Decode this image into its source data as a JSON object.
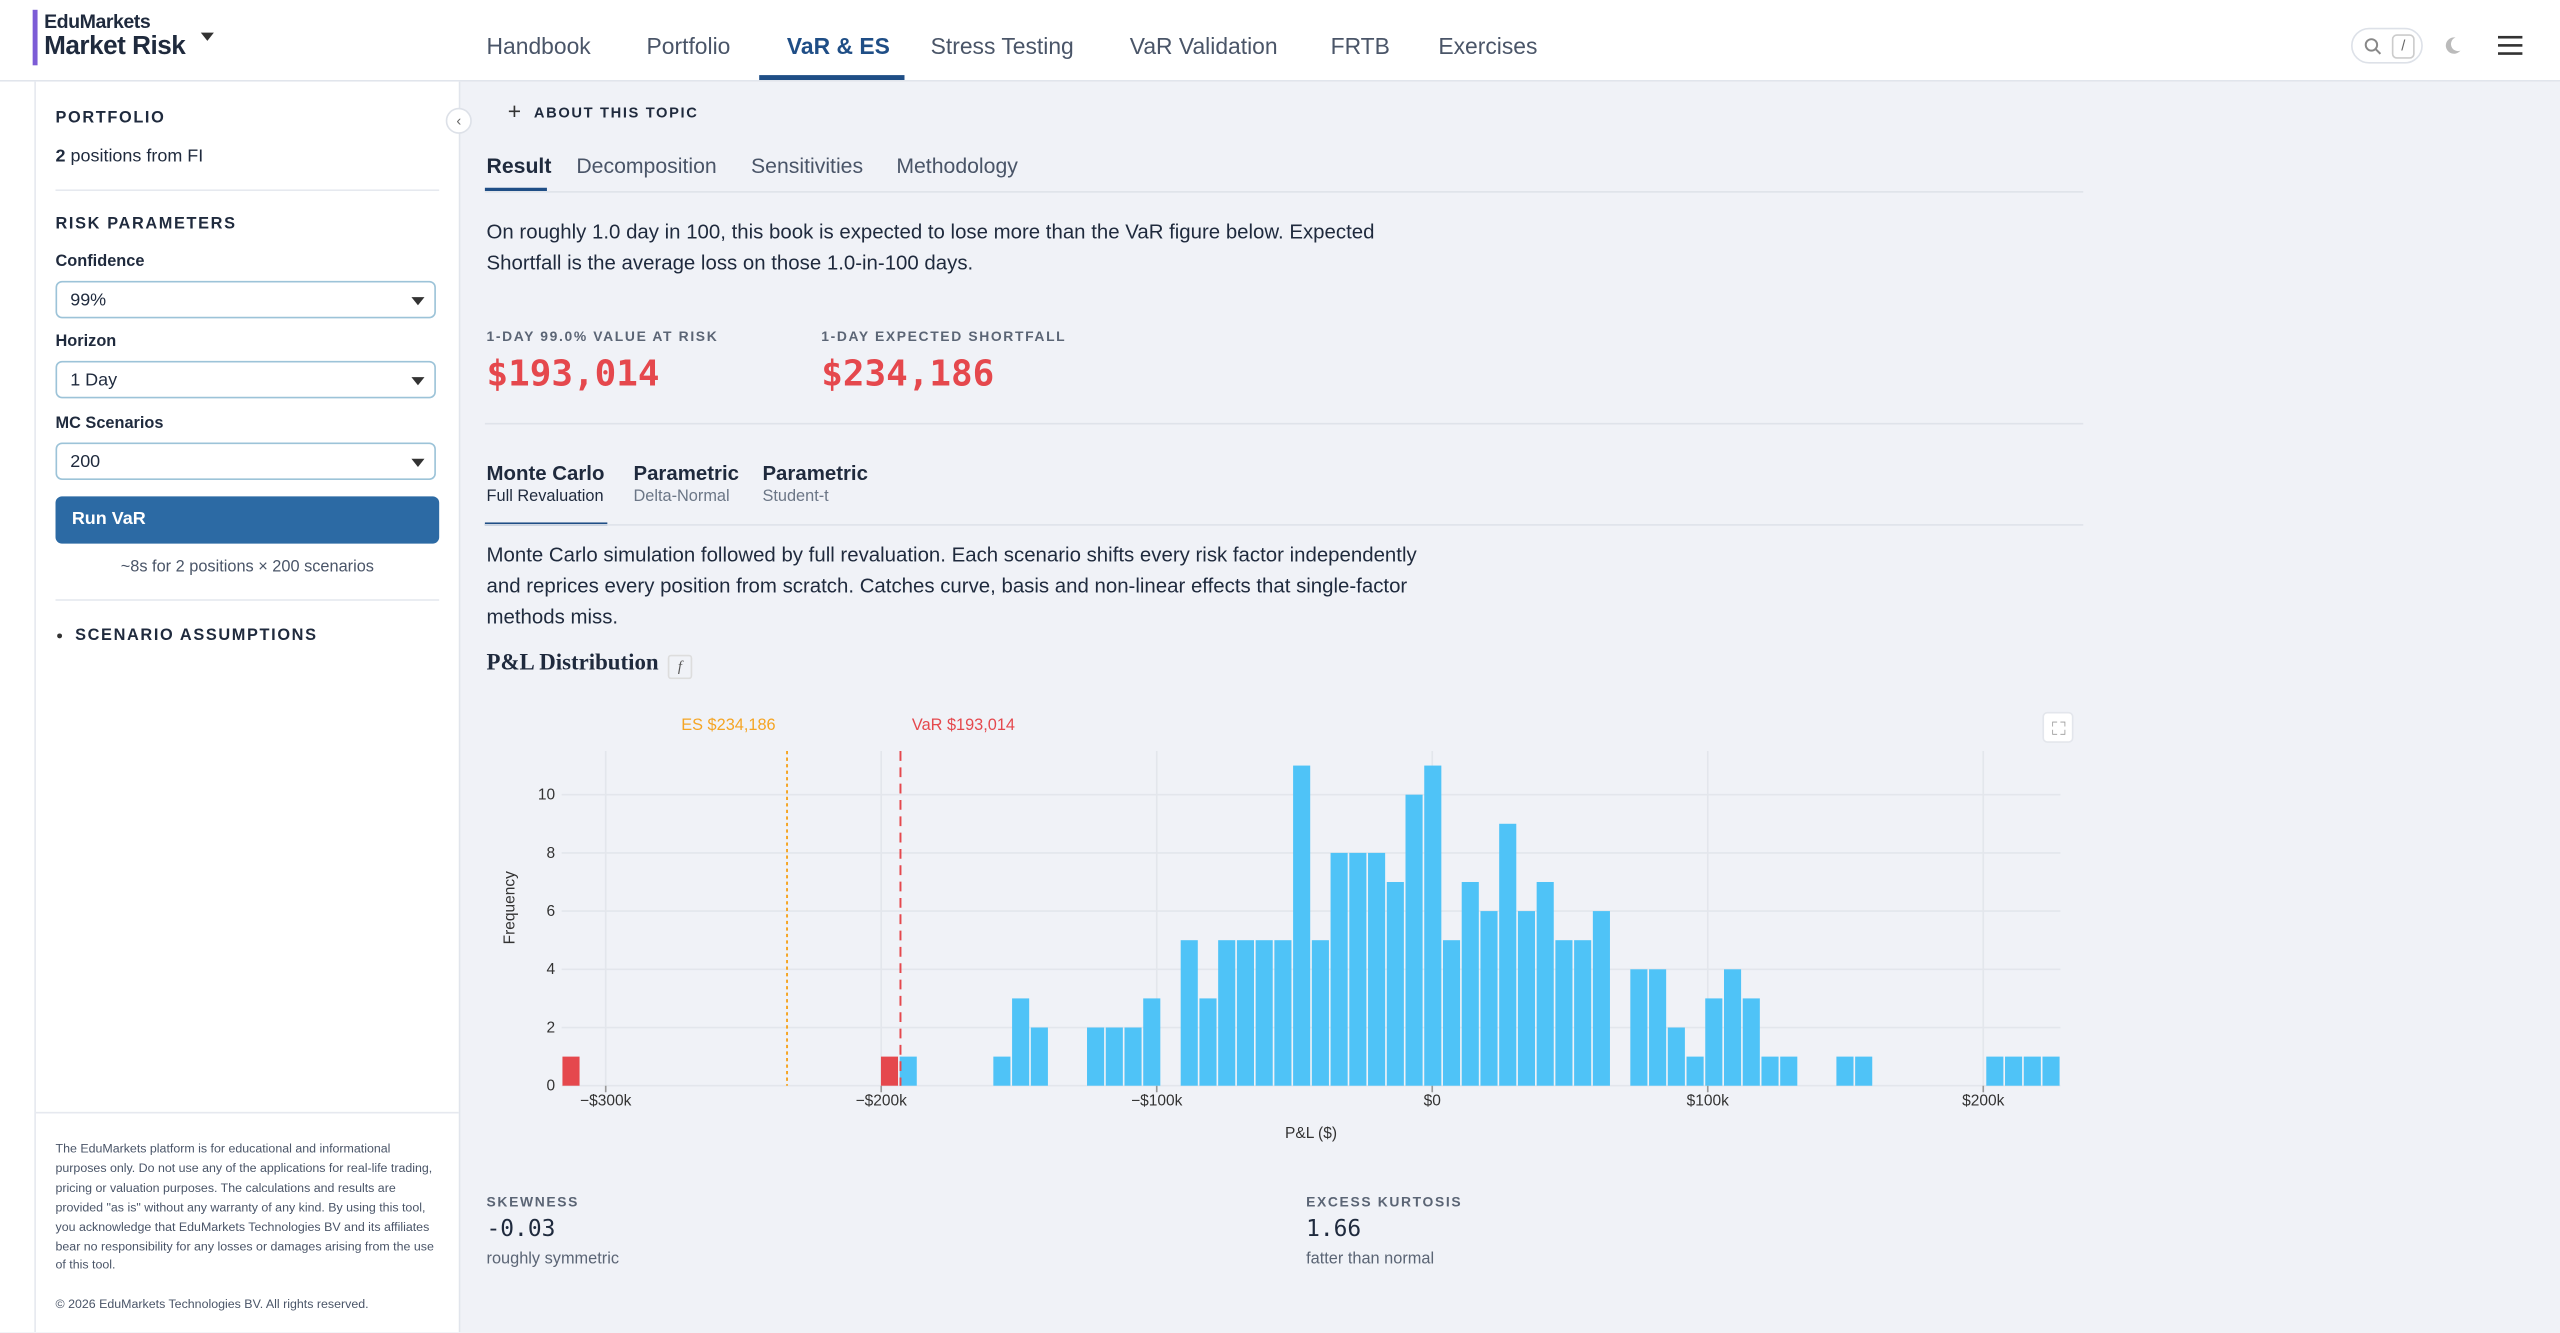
{
  "header": {
    "brand_top": "EduMarkets",
    "brand": "Market Risk",
    "nav": [
      "Handbook",
      "Portfolio",
      "VaR & ES",
      "Stress Testing",
      "VaR Validation",
      "FRTB",
      "Exercises"
    ],
    "search_key": "/"
  },
  "sidebar": {
    "portfolio_title": "PORTFOLIO",
    "position_count": "2",
    "position_text": "positions from FI",
    "risk_title": "RISK PARAMETERS",
    "fields": [
      {
        "label": "Confidence",
        "value": "99%"
      },
      {
        "label": "Horizon",
        "value": "1 Day"
      },
      {
        "label": "MC Scenarios",
        "value": "200"
      }
    ],
    "run_button": "Run VaR",
    "run_note": "~8s for 2 positions × 200 scenarios",
    "assumptions": "SCENARIO ASSUMPTIONS",
    "disclaimer": "The EduMarkets platform is for educational and informational purposes only. Do not use any of the applications for real-life trading, pricing or valuation purposes. The calculations and results are provided \"as is\" without any warranty of any kind. By using this tool, you acknowledge that EduMarkets Technologies BV and its affiliates bear no responsibility for any losses or damages arising from the use of this tool.",
    "copyright": "© 2026 EduMarkets Technologies BV. All rights reserved."
  },
  "content": {
    "about": "ABOUT THIS TOPIC",
    "tabs": [
      "Result",
      "Decomposition",
      "Sensitivities",
      "Methodology"
    ],
    "intro": "On roughly 1.0 day in 100, this book is expected to lose more than the VaR figure below. Expected Shortfall is the average loss on those 1.0-in-100 days.",
    "metrics": [
      {
        "label": "1-DAY 99.0% VALUE AT RISK",
        "value": "$193,014"
      },
      {
        "label": "1-DAY EXPECTED SHORTFALL",
        "value": "$234,186"
      }
    ],
    "methods": [
      {
        "name": "Monte Carlo",
        "sub": "Full Revaluation"
      },
      {
        "name": "Parametric",
        "sub": "Delta-Normal"
      },
      {
        "name": "Parametric",
        "sub": "Student-t"
      }
    ],
    "method_text": "Monte Carlo simulation followed by full revaluation. Each scenario shifts every risk factor independently and reprices every position from scratch. Catches curve, basis and non-linear effects that single-factor methods miss.",
    "chart_heading": "P&L Distribution",
    "chart_heading_icon": "f",
    "stats": [
      {
        "label": "SKEWNESS",
        "value": "-0.03",
        "note": "roughly symmetric"
      },
      {
        "label": "EXCESS KURTOSIS",
        "value": "1.66",
        "note": "fatter than normal"
      }
    ]
  },
  "chart_data": {
    "type": "histogram",
    "x_label": "P&L ($)",
    "y_label": "Frequency",
    "color": "#4fc3f7",
    "bins": [
      -316000,
      -309200,
      -302400,
      -295600,
      -288800,
      -282000,
      -275200,
      -268400,
      -261600,
      -254800,
      -248000,
      -241200,
      -234400,
      -227600,
      -220800,
      -214000,
      -207200,
      -200400,
      -193600,
      -186800,
      -180000,
      -173200,
      -166400,
      -159600,
      -152800,
      -146000,
      -139200,
      -132400,
      -125600,
      -118800,
      -112000,
      -105200,
      -98400,
      -91600,
      -84800,
      -78000,
      -71200,
      -64400,
      -57600,
      -50800,
      -44000,
      -37200,
      -30400,
      -23600,
      -16800,
      -10000,
      -3200,
      3600,
      10400,
      17200,
      24000,
      30800,
      37600,
      44400,
      51200,
      58000,
      64800,
      71600,
      78400,
      85200,
      92000,
      98800,
      105600,
      112400,
      119200,
      126000,
      132800,
      139600,
      146400,
      153200,
      160000,
      166800,
      173600,
      180400,
      187200,
      194000,
      200800,
      207600,
      214400,
      221200,
      228000
    ],
    "counts": [
      1,
      0,
      0,
      0,
      0,
      0,
      0,
      0,
      0,
      0,
      0,
      0,
      0,
      0,
      0,
      0,
      0,
      1,
      1,
      0,
      0,
      0,
      0,
      1,
      3,
      2,
      0,
      0,
      2,
      2,
      2,
      3,
      0,
      5,
      3,
      5,
      5,
      5,
      5,
      11,
      5,
      8,
      8,
      8,
      7,
      10,
      11,
      5,
      7,
      6,
      9,
      6,
      7,
      5,
      5,
      6,
      0,
      4,
      4,
      2,
      1,
      3,
      4,
      3,
      1,
      1,
      0,
      0,
      1,
      1,
      0,
      0,
      0,
      0,
      0,
      0,
      1,
      1,
      1,
      1
    ],
    "lines": [
      {
        "label": "ES $234,186",
        "value": -234186,
        "color": "#f5a524",
        "dash": "2 2"
      },
      {
        "label": "VaR $193,014",
        "value": -193014,
        "color": "#e5484d",
        "dash": "6 4",
        "fill_tail": true
      }
    ],
    "xlim": [
      -316000,
      228000
    ],
    "ylim": [
      0,
      11.5
    ],
    "xticks": [
      {
        "value": -300000,
        "label": "−$300k"
      },
      {
        "value": -200000,
        "label": "−$200k"
      },
      {
        "value": -100000,
        "label": "−$100k"
      },
      {
        "value": 0,
        "label": "$0"
      },
      {
        "value": 100000,
        "label": "$100k"
      },
      {
        "value": 200000,
        "label": "$200k"
      }
    ],
    "yticks": [
      0,
      2,
      4,
      6,
      8,
      10
    ],
    "grid": true
  }
}
